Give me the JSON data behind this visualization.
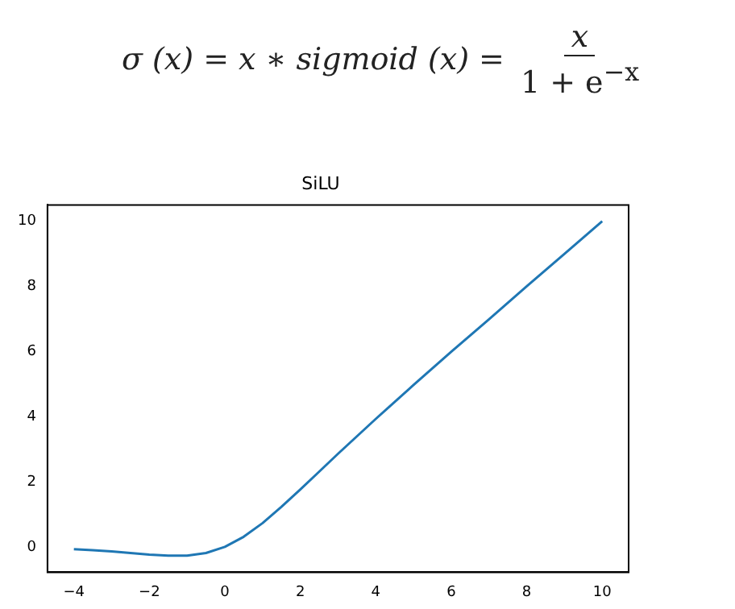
{
  "chart_data": {
    "type": "line",
    "title": "SiLU",
    "annotations": [
      "σ (x) = x ∗ sigmoid (x) = ",
      "x",
      "1 + e$^{−x}$"
    ],
    "series": [
      {
        "color": "#1f77b4",
        "x": [
          -4,
          -3.5,
          -3,
          -2.5,
          -2,
          -1.5,
          -1,
          -0.5,
          0,
          0.5,
          1,
          1.5,
          2,
          2.5,
          3,
          4,
          5,
          6,
          7,
          8,
          9,
          10
        ],
        "values": [
          -0.07,
          -0.1,
          -0.14,
          -0.19,
          -0.24,
          -0.27,
          -0.27,
          -0.19,
          0,
          0.31,
          0.73,
          1.23,
          1.76,
          2.31,
          2.86,
          3.93,
          4.97,
          5.99,
          6.99,
          8.0,
          9.0,
          10.0
        ]
      }
    ],
    "xlim": [
      -4.7,
      10.7
    ],
    "xticks": [
      -4,
      -2,
      0,
      2,
      4,
      6,
      8,
      10
    ],
    "ylim": [
      -0.78,
      10.5
    ],
    "yticks": [
      0,
      2,
      4,
      6,
      8,
      10
    ],
    "grid": false,
    "legend": false
  }
}
